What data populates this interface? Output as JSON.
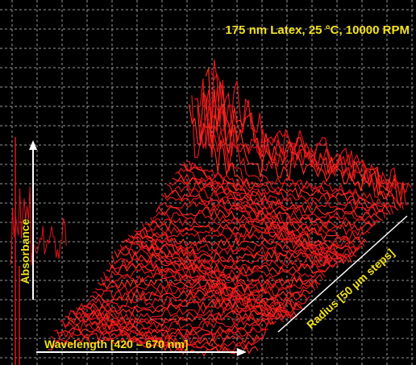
{
  "figure": {
    "title": "175 nm Latex, 25 °C, 10000 RPM",
    "x_axis_label": "Wavelength [420 – 670 nm]",
    "y_axis_label": "Absorbance",
    "depth_axis_label": "Radius [50 µm steps]"
  }
}
